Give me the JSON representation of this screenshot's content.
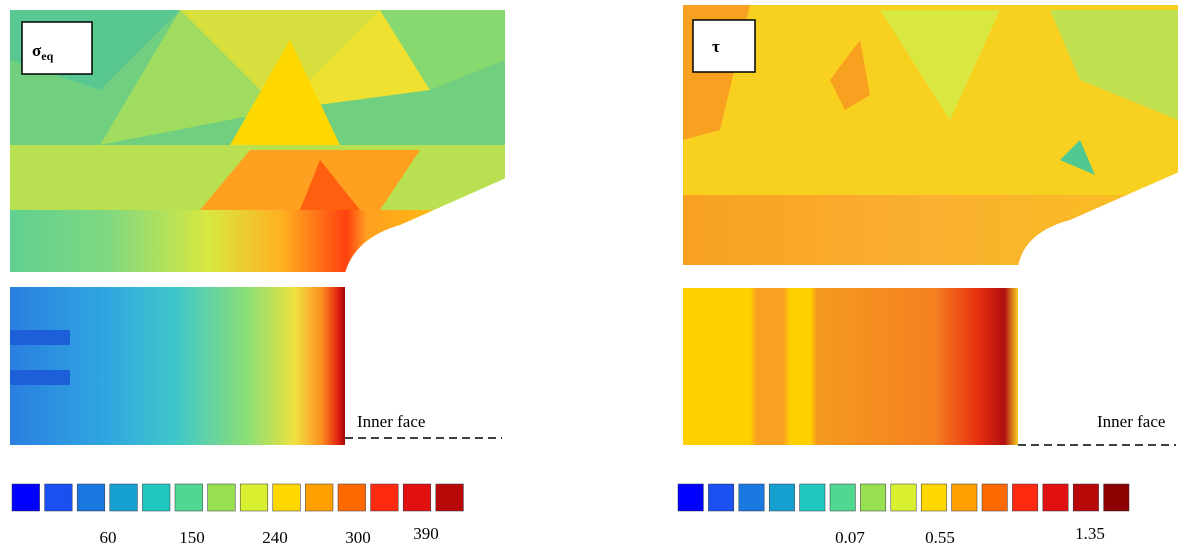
{
  "panels": [
    {
      "label": "σ",
      "label_sub": "eq",
      "annotation": "Inner face",
      "scale_labels": [
        "60",
        "150",
        "240",
        "300",
        "390"
      ]
    },
    {
      "label": "τ",
      "annotation": "Inner face",
      "scale_labels": [
        "0.07",
        "0.55",
        "1.35"
      ]
    }
  ]
}
